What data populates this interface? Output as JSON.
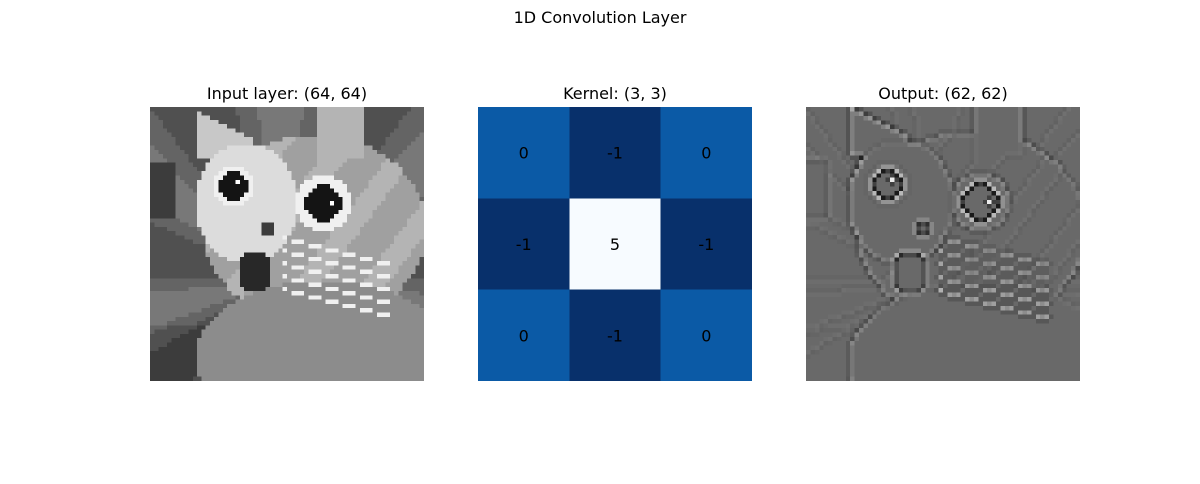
{
  "figure": {
    "title": "1D Convolution Layer"
  },
  "chart_data": [
    {
      "type": "heatmap",
      "title": "Input layer: (64, 64)",
      "colormap": "gray",
      "rows": 64,
      "cols": 64,
      "content": "pixelated grayscale photo of a startled cat"
    },
    {
      "type": "heatmap",
      "title": "Kernel: (3, 3)",
      "colormap": "Blues",
      "values": [
        [
          0,
          -1,
          0
        ],
        [
          -1,
          5,
          -1
        ],
        [
          0,
          -1,
          0
        ]
      ],
      "cell_labels": [
        [
          "0",
          "-1",
          "0"
        ],
        [
          "-1",
          "5",
          "-1"
        ],
        [
          "0",
          "-1",
          "0"
        ]
      ],
      "colors": {
        "-1": "#08306b",
        "0": "#0b5aa6",
        "5": "#f7fbff"
      }
    },
    {
      "type": "heatmap",
      "title": "Output: (62, 62)",
      "colormap": "gray",
      "rows": 62,
      "cols": 62,
      "content": "edge-sharpened result of convolving the input with the kernel"
    }
  ]
}
